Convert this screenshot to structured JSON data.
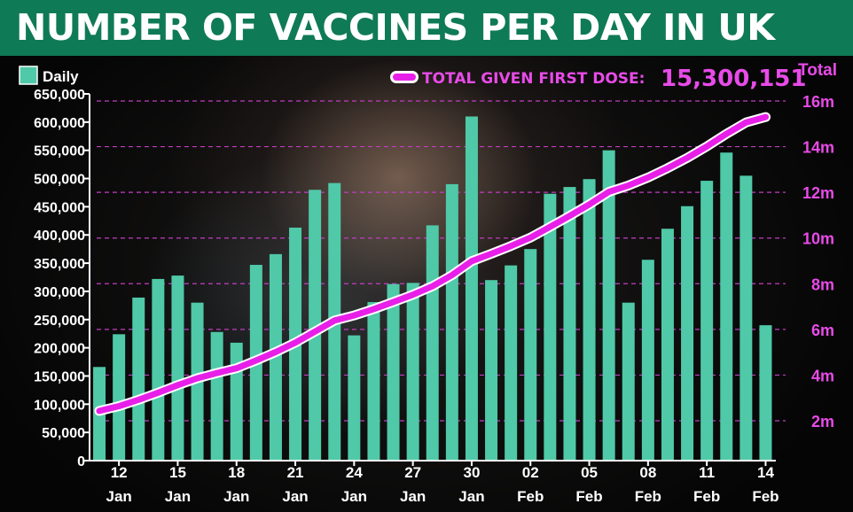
{
  "title": "NUMBER OF VACCINES PER DAY IN UK",
  "colors": {
    "title_bg": "#0f7a56",
    "bar": "#4fc9a7",
    "line": "#e81fe8",
    "line_outline": "#ffffff",
    "right_axis": "#e84be8",
    "grid": "#c33bc3"
  },
  "chart_data": {
    "type": "bar",
    "legend_bars": "Daily",
    "legend_line": "TOTAL GIVEN FIRST DOSE:",
    "legend_total_value": "15,300,151",
    "right_axis_title": "Total",
    "left_axis": {
      "ylim": [
        0,
        650000
      ],
      "ticks": [
        0,
        50000,
        100000,
        150000,
        200000,
        250000,
        300000,
        350000,
        400000,
        450000,
        500000,
        550000,
        600000,
        650000
      ],
      "tick_labels": [
        "0",
        "50,000",
        "100,000",
        "150,000",
        "200,000",
        "250,000",
        "300,000",
        "350,000",
        "400,000",
        "450,000",
        "500,000",
        "550,000",
        "600,000",
        "650,000"
      ]
    },
    "right_axis": {
      "ylim": [
        1000000,
        17000000
      ],
      "ticks": [
        2000000,
        4000000,
        6000000,
        8000000,
        10000000,
        12000000,
        14000000,
        16000000
      ],
      "tick_labels": [
        "2m",
        "4m",
        "6m",
        "8m",
        "10m",
        "12m",
        "14m",
        "16m"
      ]
    },
    "x_tick_labels": [
      {
        "day": "12",
        "month": "Jan"
      },
      {
        "day": "15",
        "month": "Jan"
      },
      {
        "day": "18",
        "month": "Jan"
      },
      {
        "day": "21",
        "month": "Jan"
      },
      {
        "day": "24",
        "month": "Jan"
      },
      {
        "day": "27",
        "month": "Jan"
      },
      {
        "day": "30",
        "month": "Jan"
      },
      {
        "day": "02",
        "month": "Feb"
      },
      {
        "day": "05",
        "month": "Feb"
      },
      {
        "day": "08",
        "month": "Feb"
      },
      {
        "day": "11",
        "month": "Feb"
      },
      {
        "day": "14",
        "month": "Feb"
      }
    ],
    "categories": [
      "11 Jan",
      "12 Jan",
      "13 Jan",
      "14 Jan",
      "15 Jan",
      "16 Jan",
      "17 Jan",
      "18 Jan",
      "19 Jan",
      "20 Jan",
      "21 Jan",
      "22 Jan",
      "23 Jan",
      "24 Jan",
      "25 Jan",
      "26 Jan",
      "27 Jan",
      "28 Jan",
      "29 Jan",
      "30 Jan",
      "31 Jan",
      "01 Feb",
      "02 Feb",
      "03 Feb",
      "04 Feb",
      "05 Feb",
      "06 Feb",
      "07 Feb",
      "08 Feb",
      "09 Feb",
      "10 Feb",
      "11 Feb",
      "12 Feb",
      "13 Feb",
      "14 Feb"
    ],
    "series": [
      {
        "name": "Daily",
        "type": "bar",
        "axis": "left",
        "values": [
          166000,
          224000,
          289000,
          322000,
          328000,
          280000,
          228000,
          209000,
          347000,
          366000,
          413000,
          480000,
          492000,
          222000,
          281000,
          313000,
          315000,
          417000,
          490000,
          610000,
          320000,
          346000,
          375000,
          473000,
          485000,
          499000,
          550000,
          280000,
          356000,
          411000,
          451000,
          496000,
          546000,
          505000,
          240000
        ]
      },
      {
        "name": "TOTAL GIVEN FIRST DOSE:",
        "type": "line",
        "axis": "right",
        "values": [
          2430000,
          2640000,
          2920000,
          3230000,
          3560000,
          3860000,
          4090000,
          4300000,
          4640000,
          5010000,
          5420000,
          5900000,
          6390000,
          6610000,
          6890000,
          7200000,
          7520000,
          7890000,
          8380000,
          8990000,
          9310000,
          9650000,
          10020000,
          10490000,
          10970000,
          11470000,
          12020000,
          12300000,
          12650000,
          13060000,
          13510000,
          14010000,
          14560000,
          15060000,
          15300000
        ]
      }
    ]
  }
}
